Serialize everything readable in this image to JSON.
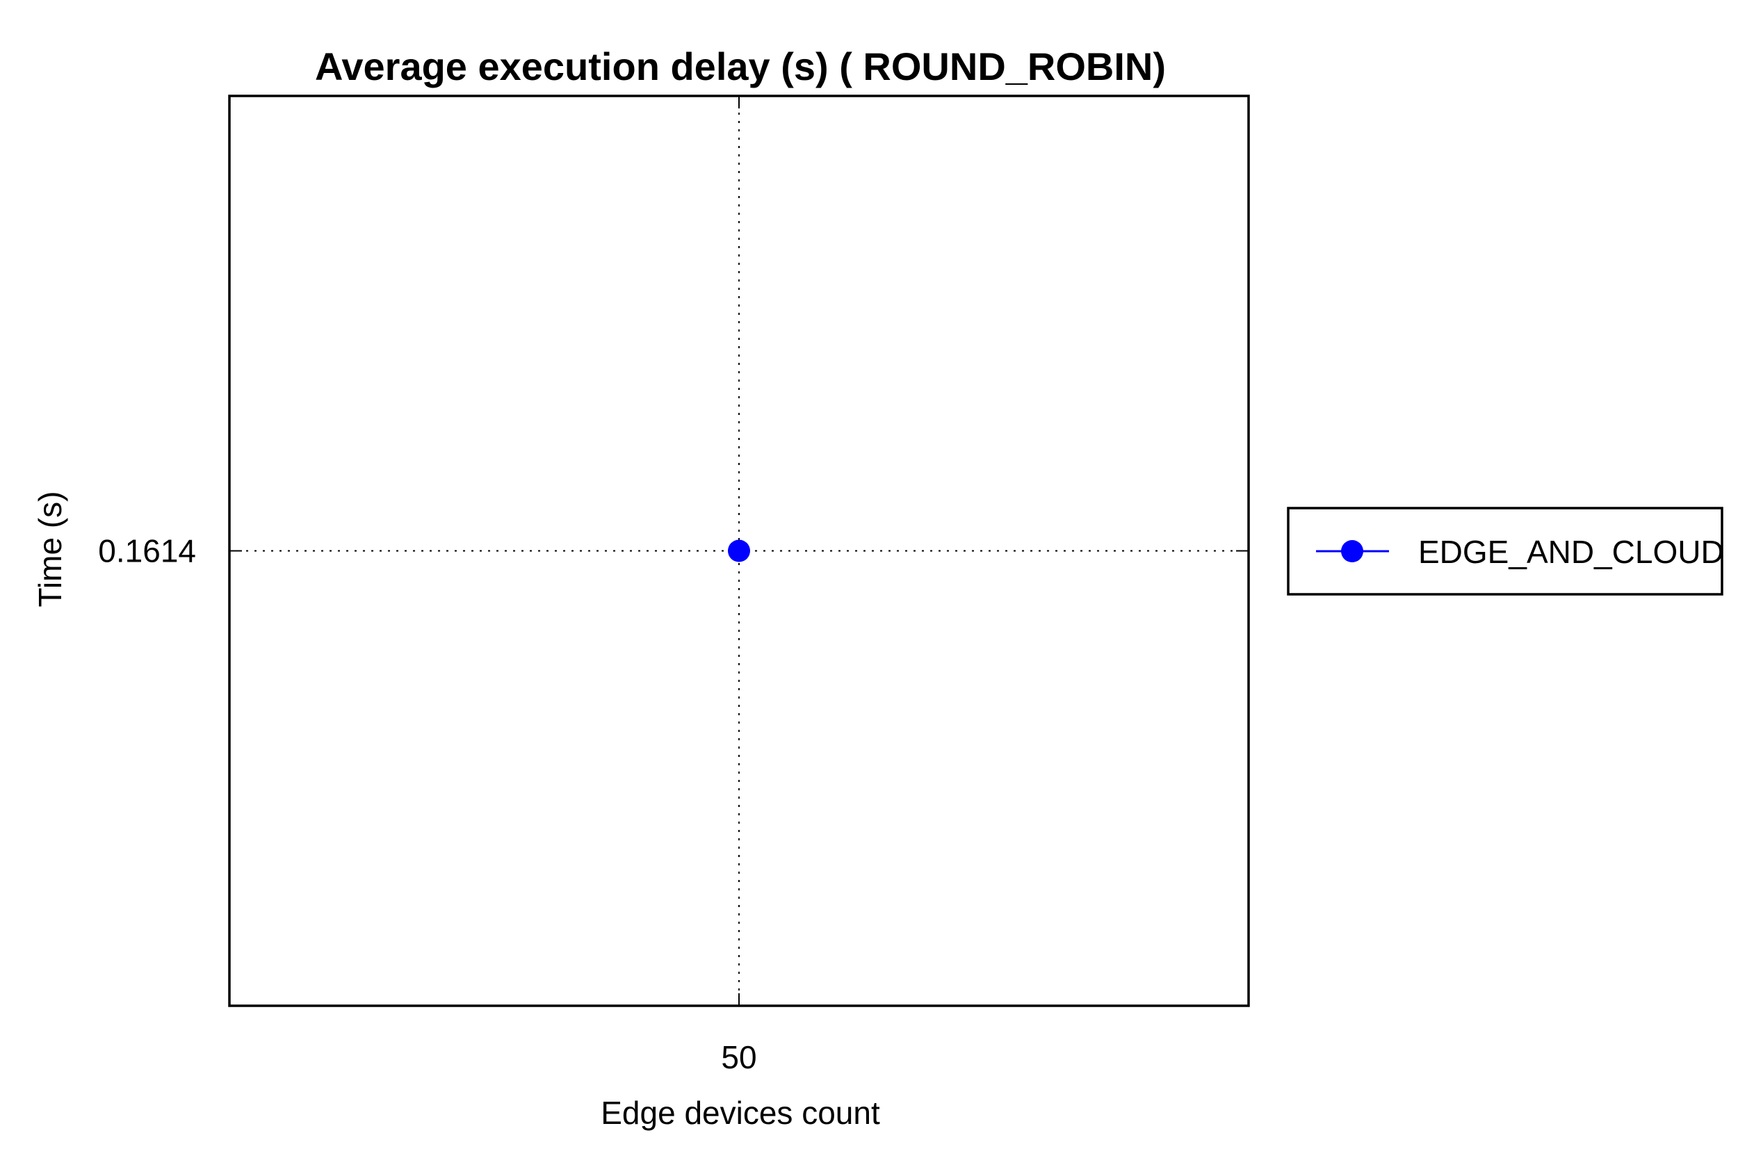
{
  "chart_data": {
    "type": "line",
    "title": "Average execution delay (s) ( ROUND_ROBIN)",
    "xlabel": "Edge devices count",
    "ylabel": "Time (s)",
    "x": [
      50
    ],
    "x_tick_labels": [
      "50"
    ],
    "y_tick_labels": [
      "0.1614"
    ],
    "xlim": [
      49,
      51
    ],
    "ylim": [
      0.1613,
      0.1615
    ],
    "grid": true,
    "legend_position": "right",
    "series": [
      {
        "name": "EDGE_AND_CLOUD",
        "color": "#0000ff",
        "marker": "circle",
        "values": [
          0.1614
        ]
      }
    ]
  }
}
